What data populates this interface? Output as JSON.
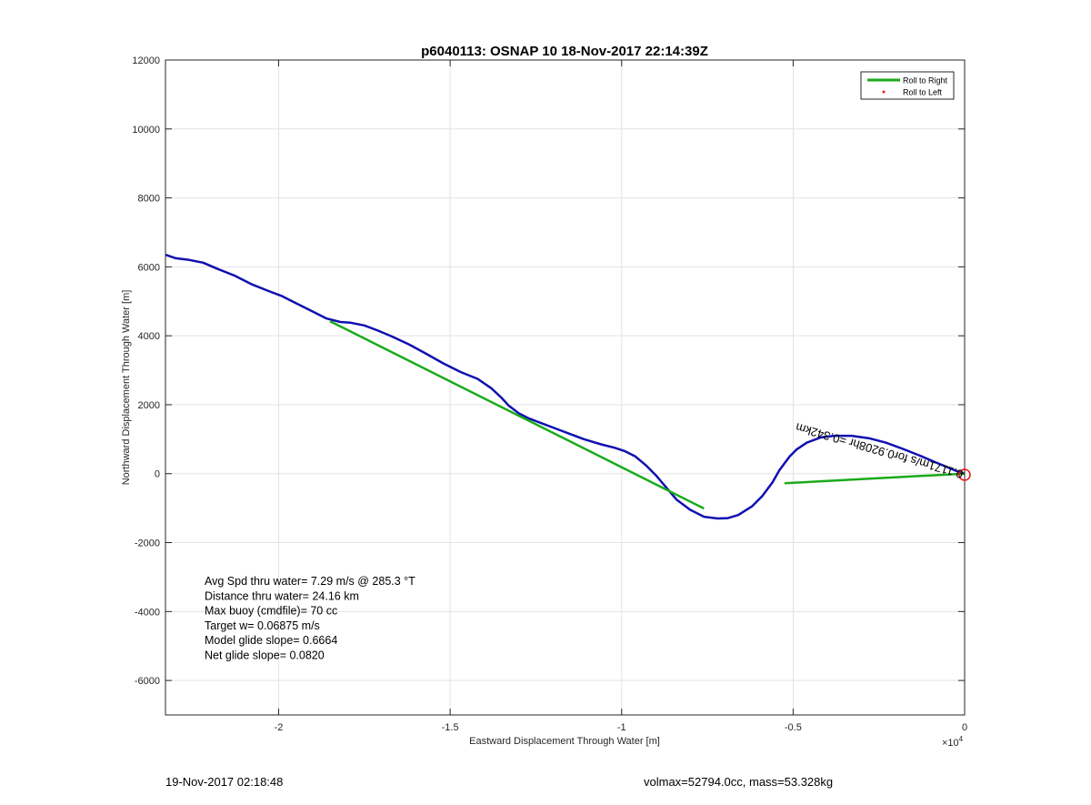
{
  "chart_data": {
    "type": "line",
    "title": "p6040113: OSNAP 10 18-Nov-2017 22:14:39Z",
    "xlabel": "Eastward Displacement Through Water [m]",
    "ylabel": "Northward Displacement Through Water [m]",
    "x_exponent_label": "×10",
    "x_exponent_power": "4",
    "xlim": [
      -23300,
      0
    ],
    "ylim": [
      -7000,
      12000
    ],
    "x_ticks": [
      -20000,
      -15000,
      -10000,
      -5000,
      0
    ],
    "x_tick_labels": [
      "-2",
      "-1.5",
      "-1",
      "-0.5",
      "0"
    ],
    "y_ticks": [
      -6000,
      -4000,
      -2000,
      0,
      2000,
      4000,
      6000,
      8000,
      10000,
      12000
    ],
    "y_tick_labels": [
      "-6000",
      "-4000",
      "-2000",
      "0",
      "2000",
      "4000",
      "6000",
      "8000",
      "10000",
      "12000"
    ],
    "grid": true,
    "legend_position": "top-right",
    "legend": [
      {
        "label": "Roll to Right",
        "color": "#1aaa1a",
        "style": "line"
      },
      {
        "label": "Roll to Left",
        "color": "#ee2222",
        "style": "dot"
      }
    ],
    "series": [
      {
        "color": "#1010b0",
        "x": [
          -23300,
          -23000,
          -22600,
          -22200,
          -21800,
          -21300,
          -20800,
          -20300,
          -19900,
          -19500,
          -19000,
          -18600,
          -18200,
          -17900,
          -17500,
          -17100,
          -16700,
          -16200,
          -15700,
          -15200,
          -14700,
          -14200,
          -13800,
          -13500,
          -13300,
          -13000,
          -12700,
          -12300,
          -11900,
          -11500,
          -11100,
          -10600,
          -10200,
          -9900,
          -9600,
          -9300,
          -9000,
          -8700,
          -8400,
          -8000,
          -7600,
          -7200,
          -6900,
          -6600,
          -6200,
          -5900,
          -5600,
          -5400,
          -5250,
          -5100,
          -4900,
          -4600,
          -4200,
          -3800,
          -3300,
          -2800,
          -2300,
          -1800,
          -1300,
          -800,
          -300,
          0
        ],
        "y": [
          6350,
          6250,
          6200,
          6120,
          5950,
          5750,
          5500,
          5300,
          5150,
          4950,
          4700,
          4500,
          4400,
          4380,
          4300,
          4150,
          3980,
          3750,
          3480,
          3200,
          2950,
          2750,
          2480,
          2200,
          1980,
          1750,
          1600,
          1450,
          1300,
          1150,
          1000,
          850,
          750,
          650,
          500,
          250,
          -50,
          -400,
          -750,
          -1050,
          -1250,
          -1300,
          -1290,
          -1200,
          -950,
          -650,
          -250,
          100,
          300,
          500,
          700,
          900,
          1050,
          1100,
          1100,
          1030,
          900,
          720,
          520,
          310,
          100,
          0
        ]
      },
      {
        "color": "#1aaa1a",
        "x": [
          -18500,
          -7600
        ],
        "y": [
          4420,
          -1010
        ]
      },
      {
        "color": "#1aaa1a",
        "x": [
          -5250,
          0
        ],
        "y": [
          -280,
          0
        ]
      }
    ],
    "annotations": [
      "Avg Spd thru water=  7.29 m/s @ 285.3 °T",
      "Distance thru water= 24.16 km",
      "Max buoy (cmdfile)= 70 cc",
      "Target w= 0.06875 m/s",
      "Model glide slope= 0.6664",
      "Net glide slope= 0.0820"
    ],
    "rotated_label": "0.1171m/s for0.9208hr =0.342km"
  },
  "footer": {
    "date": "19-Nov-2017 02:18:48",
    "volmax": "volmax=52794.0cc, mass=53.328kg"
  }
}
